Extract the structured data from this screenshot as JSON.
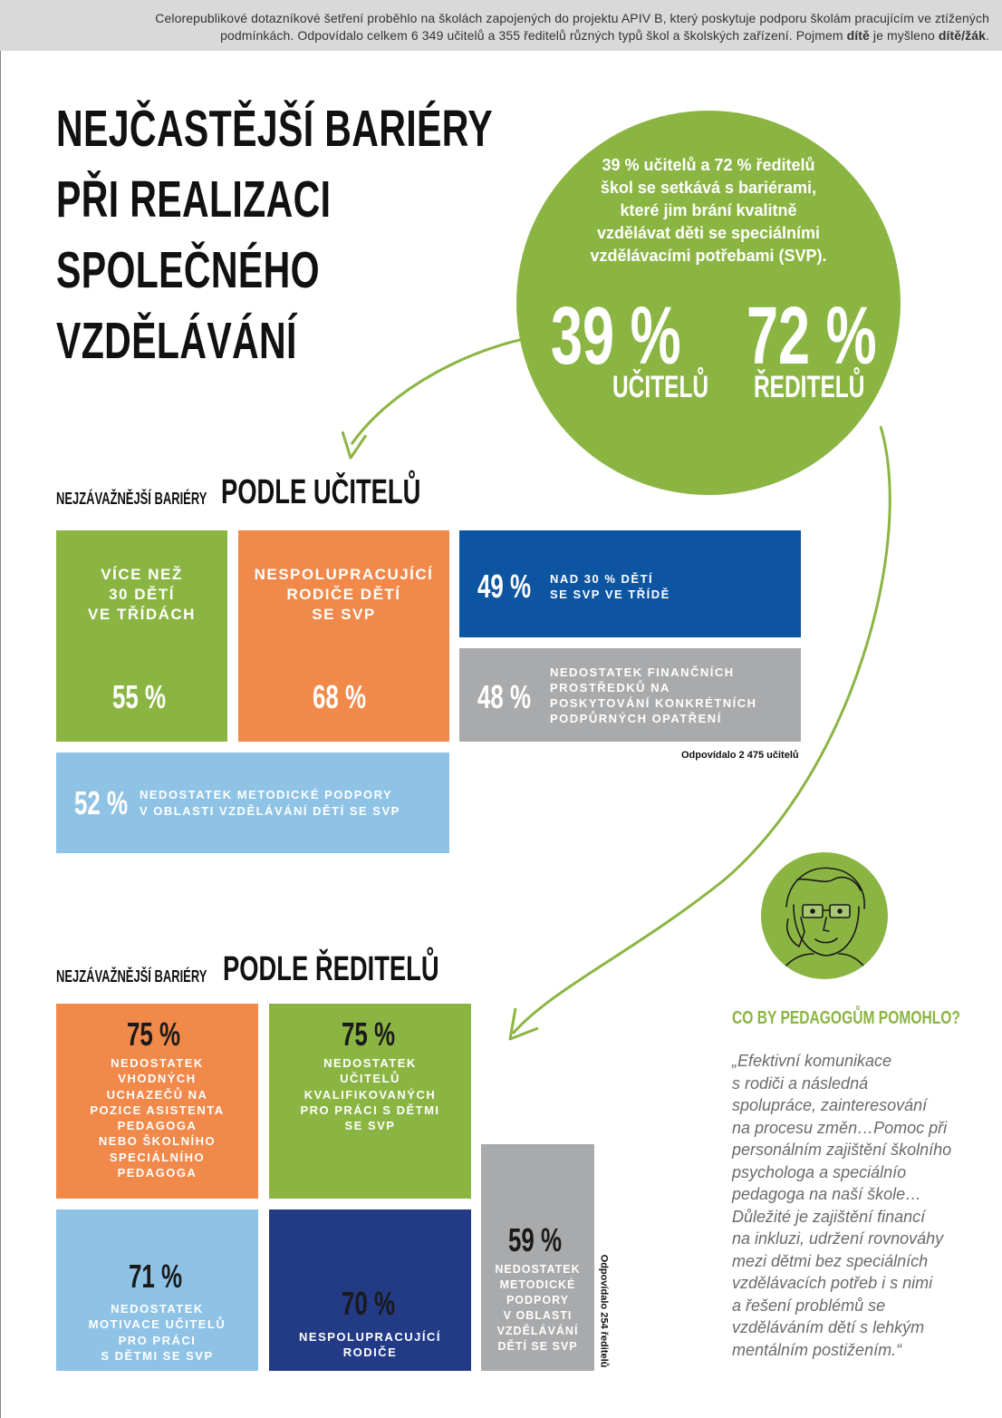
{
  "intro": {
    "line1": "Celorepublikové dotazníkové šetření proběhlo na školách zapojených do projektu APIV B, který poskytuje podporu školám pracujícím ve ztížených",
    "line2_start": "podmínkách. Odpovídalo celkem 6 349 učitelů a 355 ředitelů různých typů škol a školských zařízení. Pojmem ",
    "bold1": "dítě",
    "mid": " je myšleno ",
    "bold2": "dítě/žák",
    "end": "."
  },
  "title": [
    "NEJČASTĚJŠÍ BARIÉRY",
    "PŘI REALIZACI",
    "SPOLEČNÉHO",
    "VZDĚLÁVÁNÍ"
  ],
  "circle": {
    "text": [
      "39 % učitelů a 72 % ředitelů",
      "škol se setkává s bariérami,",
      "které jim brání kvalitně",
      "vzdělávat děti se speciálními",
      "vzdělávacími potřebami (SVP)."
    ],
    "teachers_pct": "39 %",
    "teachers_label": "UČITELŮ",
    "directors_pct": "72 %",
    "directors_label": "ŘEDITELŮ"
  },
  "teachers": {
    "heading_small": "NEJZÁVAŽNĚJŠÍ BARIÉRY",
    "heading_big": "PODLE UČITELŮ",
    "items": [
      {
        "pct": "55 %",
        "text": [
          "VÍCE NEŽ",
          "30 DĚTÍ",
          "VE TŘÍDÁCH"
        ]
      },
      {
        "pct": "68 %",
        "text": [
          "NESPOLUPRACUJÍCÍ",
          "RODIČE DĚTÍ",
          "SE SVP"
        ]
      },
      {
        "pct": "49 %",
        "text": [
          "NAD 30 % DĚTÍ",
          "SE SVP VE TŘÍDĚ"
        ]
      },
      {
        "pct": "48 %",
        "text": [
          "NEDOSTATEK FINANČNÍCH",
          "PROSTŘEDKŮ NA",
          "POSKYTOVÁNÍ KONKRÉTNÍCH",
          "PODPŮRNÝCH OPATŘENÍ"
        ]
      },
      {
        "pct": "52 %",
        "text": [
          "NEDOSTATEK METODICKÉ PODPORY",
          "V OBLASTI VZDĚLÁVÁNÍ DĚTÍ SE SVP"
        ]
      }
    ],
    "note": "Odpovídalo 2 475 učitelů"
  },
  "directors": {
    "heading_small": "NEJZÁVAŽNĚJŠÍ BARIÉRY",
    "heading_big": "PODLE ŘEDITELŮ",
    "items": [
      {
        "pct": "75 %",
        "text": [
          "NEDOSTATEK",
          "VHODNÝCH",
          "UCHAZEČŮ NA",
          "POZICE ASISTENTA",
          "PEDAGOGA",
          "NEBO ŠKOLNÍHO",
          "SPECIÁLNÍHO",
          "PEDAGOGA"
        ]
      },
      {
        "pct": "75 %",
        "text": [
          "NEDOSTATEK",
          "UČITELŮ",
          "KVALIFIKOVANÝCH",
          "PRO PRÁCI S DĚTMI",
          "SE SVP"
        ]
      },
      {
        "pct": "71 %",
        "text": [
          "NEDOSTATEK",
          "MOTIVACE UČITELŮ",
          "PRO PRÁCI",
          "S DĚTMI SE SVP"
        ]
      },
      {
        "pct": "70 %",
        "text": [
          "NESPOLUPRACUJÍCÍ",
          "RODIČE"
        ]
      },
      {
        "pct": "59 %",
        "text": [
          "NEDOSTATEK",
          "METODICKÉ",
          "PODPORY",
          "V OBLASTI",
          "VZDĚLÁVÁNÍ",
          "DĚTÍ SE SVP"
        ]
      }
    ],
    "note": "Odpovídalo 254 ředitelů"
  },
  "quote": {
    "heading": "CO BY PEDAGOGŮM POMOHLO?",
    "lines": [
      "„Efektivní komunikace",
      "s rodiči a následná",
      "spolupráce, zainteresování",
      "na procesu změn…Pomoc při",
      "personálním zajištění školního",
      "psychologa a speciálnío",
      "pedagoga na naší škole…",
      "Důležité je zajištění financí",
      "na inkluzi, udržení rovnováhy",
      "mezi dětmi bez speciálních",
      "vzdělávacích potřeb i s nimi",
      "a řešení problémů se",
      "vzděláváním dětí s lehkým",
      "mentálním postižením.“"
    ]
  },
  "colors": {
    "green": "#8bb543",
    "orange": "#f0894a",
    "blue": "#0e55a1",
    "grey": "#a9aaac",
    "lightblue": "#8ec3e6",
    "navy": "#233b86"
  }
}
